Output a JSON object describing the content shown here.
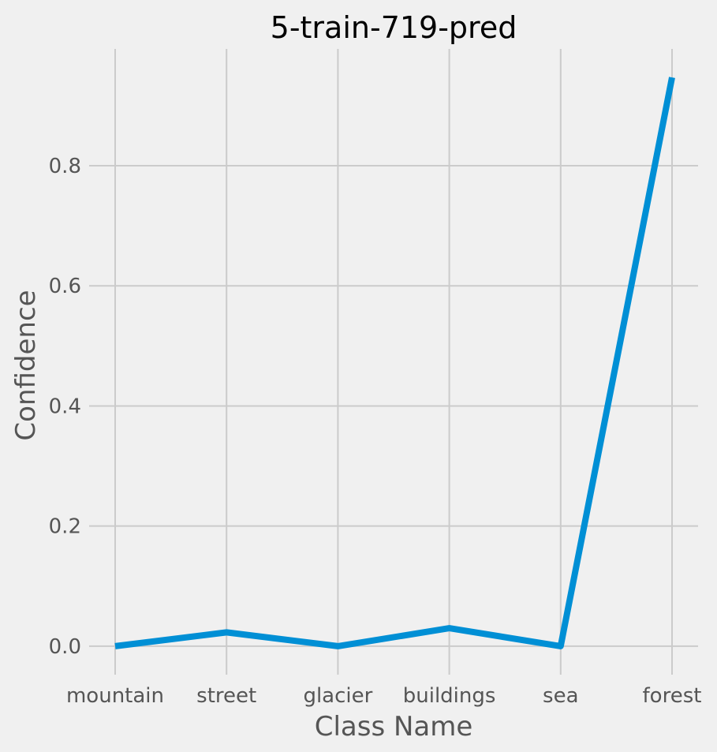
{
  "chart_data": {
    "type": "line",
    "title": "5-train-719-pred",
    "xlabel": "Class Name",
    "ylabel": "Confidence",
    "categories": [
      "mountain",
      "street",
      "glacier",
      "buildings",
      "sea",
      "forest"
    ],
    "series": [
      {
        "values": [
          0.0,
          0.023,
          0.0,
          0.03,
          0.0,
          0.947
        ],
        "color": "#008fd5"
      }
    ],
    "yticks": [
      0.0,
      0.2,
      0.4,
      0.6,
      0.8
    ],
    "ytick_labels": [
      "0.0",
      "0.2",
      "0.4",
      "0.6",
      "0.8"
    ],
    "ylim": [
      -0.0474,
      0.9944
    ],
    "grid": true,
    "colors": {
      "background": "#f0f0f0",
      "grid": "#cbcbcb",
      "line": "#008fd5"
    }
  }
}
